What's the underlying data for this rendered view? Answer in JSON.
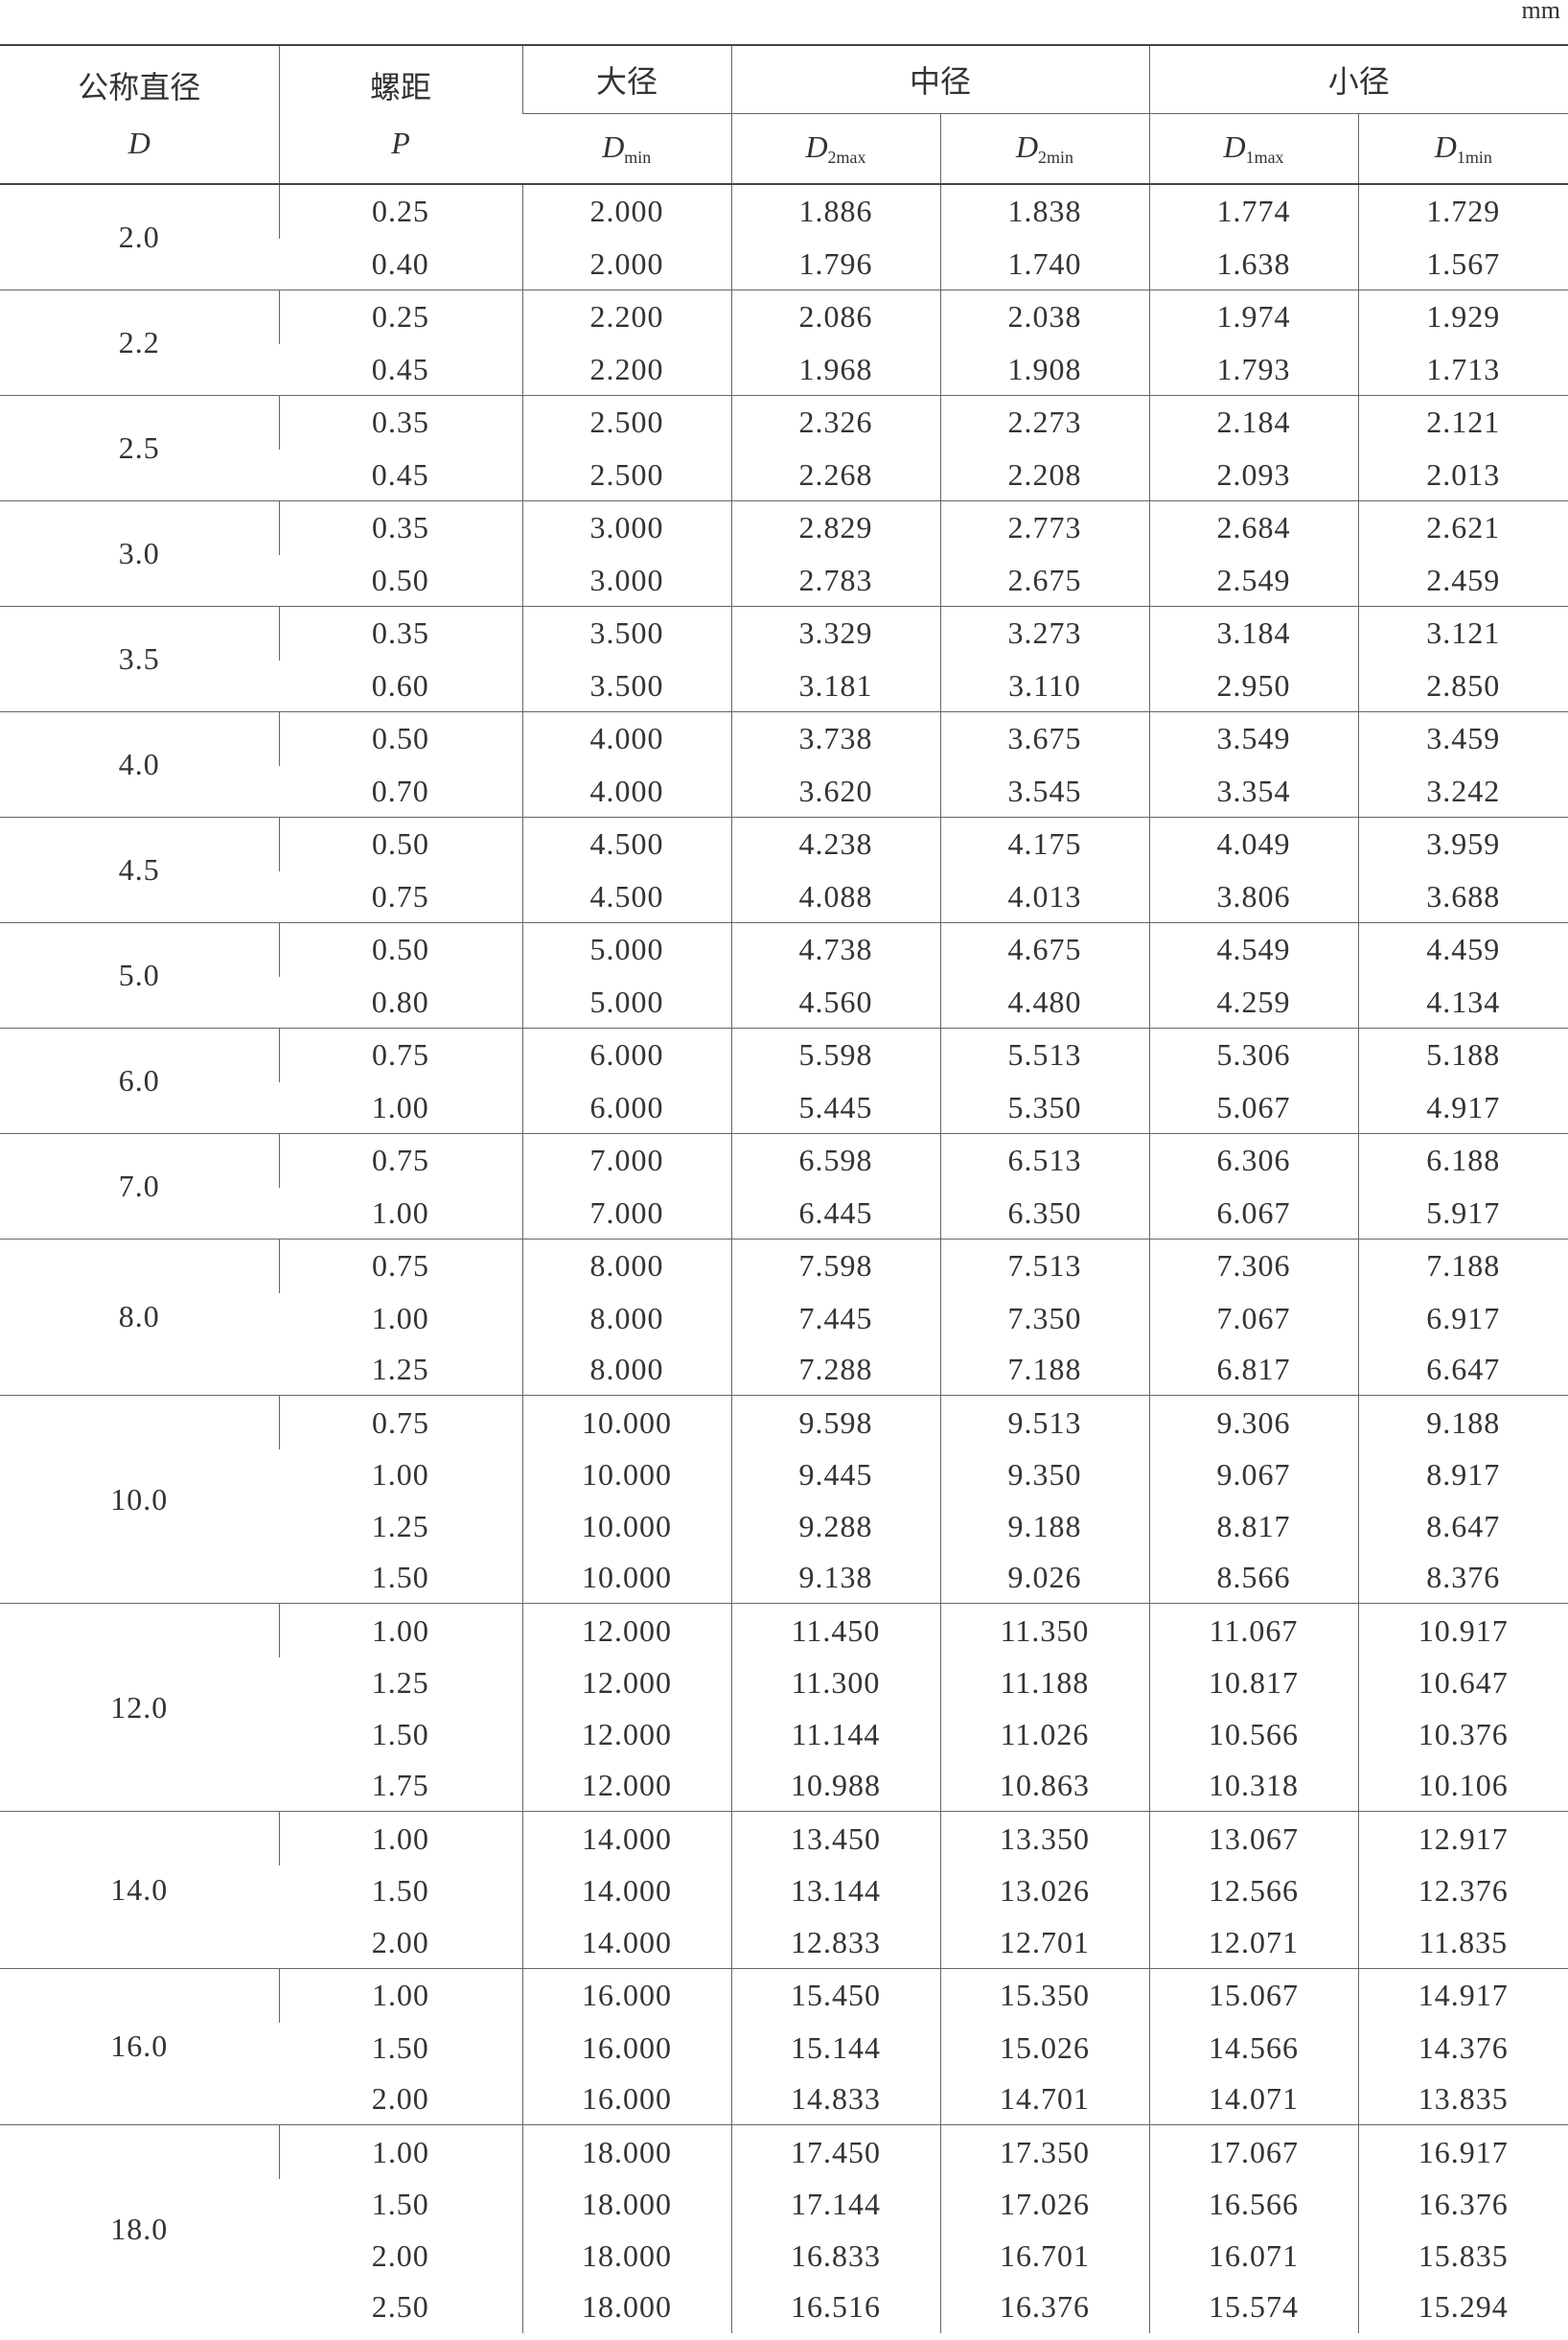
{
  "header": {
    "unit": "mm",
    "nominal_diameter": "公称直径",
    "nominal_symbol": "D",
    "pitch": "螺距",
    "pitch_symbol": "P",
    "major": "大径",
    "pitch_diameter": "中径",
    "minor": "小径",
    "sub_columns": [
      {
        "symbol": "D",
        "sub": "min"
      },
      {
        "symbol": "D",
        "sub": "2max"
      },
      {
        "symbol": "D",
        "sub": "2min"
      },
      {
        "symbol": "D",
        "sub": "1max"
      },
      {
        "symbol": "D",
        "sub": "1min"
      }
    ]
  },
  "table": {
    "groups": [
      {
        "D": "2.0",
        "rows": [
          [
            "0.25",
            "2.000",
            "1.886",
            "1.838",
            "1.774",
            "1.729"
          ],
          [
            "0.40",
            "2.000",
            "1.796",
            "1.740",
            "1.638",
            "1.567"
          ]
        ]
      },
      {
        "D": "2.2",
        "rows": [
          [
            "0.25",
            "2.200",
            "2.086",
            "2.038",
            "1.974",
            "1.929"
          ],
          [
            "0.45",
            "2.200",
            "1.968",
            "1.908",
            "1.793",
            "1.713"
          ]
        ]
      },
      {
        "D": "2.5",
        "rows": [
          [
            "0.35",
            "2.500",
            "2.326",
            "2.273",
            "2.184",
            "2.121"
          ],
          [
            "0.45",
            "2.500",
            "2.268",
            "2.208",
            "2.093",
            "2.013"
          ]
        ]
      },
      {
        "D": "3.0",
        "rows": [
          [
            "0.35",
            "3.000",
            "2.829",
            "2.773",
            "2.684",
            "2.621"
          ],
          [
            "0.50",
            "3.000",
            "2.783",
            "2.675",
            "2.549",
            "2.459"
          ]
        ]
      },
      {
        "D": "3.5",
        "rows": [
          [
            "0.35",
            "3.500",
            "3.329",
            "3.273",
            "3.184",
            "3.121"
          ],
          [
            "0.60",
            "3.500",
            "3.181",
            "3.110",
            "2.950",
            "2.850"
          ]
        ]
      },
      {
        "D": "4.0",
        "rows": [
          [
            "0.50",
            "4.000",
            "3.738",
            "3.675",
            "3.549",
            "3.459"
          ],
          [
            "0.70",
            "4.000",
            "3.620",
            "3.545",
            "3.354",
            "3.242"
          ]
        ]
      },
      {
        "D": "4.5",
        "rows": [
          [
            "0.50",
            "4.500",
            "4.238",
            "4.175",
            "4.049",
            "3.959"
          ],
          [
            "0.75",
            "4.500",
            "4.088",
            "4.013",
            "3.806",
            "3.688"
          ]
        ]
      },
      {
        "D": "5.0",
        "rows": [
          [
            "0.50",
            "5.000",
            "4.738",
            "4.675",
            "4.549",
            "4.459"
          ],
          [
            "0.80",
            "5.000",
            "4.560",
            "4.480",
            "4.259",
            "4.134"
          ]
        ]
      },
      {
        "D": "6.0",
        "rows": [
          [
            "0.75",
            "6.000",
            "5.598",
            "5.513",
            "5.306",
            "5.188"
          ],
          [
            "1.00",
            "6.000",
            "5.445",
            "5.350",
            "5.067",
            "4.917"
          ]
        ]
      },
      {
        "D": "7.0",
        "rows": [
          [
            "0.75",
            "7.000",
            "6.598",
            "6.513",
            "6.306",
            "6.188"
          ],
          [
            "1.00",
            "7.000",
            "6.445",
            "6.350",
            "6.067",
            "5.917"
          ]
        ]
      },
      {
        "D": "8.0",
        "rows": [
          [
            "0.75",
            "8.000",
            "7.598",
            "7.513",
            "7.306",
            "7.188"
          ],
          [
            "1.00",
            "8.000",
            "7.445",
            "7.350",
            "7.067",
            "6.917"
          ],
          [
            "1.25",
            "8.000",
            "7.288",
            "7.188",
            "6.817",
            "6.647"
          ]
        ]
      },
      {
        "D": "10.0",
        "rows": [
          [
            "0.75",
            "10.000",
            "9.598",
            "9.513",
            "9.306",
            "9.188"
          ],
          [
            "1.00",
            "10.000",
            "9.445",
            "9.350",
            "9.067",
            "8.917"
          ],
          [
            "1.25",
            "10.000",
            "9.288",
            "9.188",
            "8.817",
            "8.647"
          ],
          [
            "1.50",
            "10.000",
            "9.138",
            "9.026",
            "8.566",
            "8.376"
          ]
        ]
      },
      {
        "D": "12.0",
        "rows": [
          [
            "1.00",
            "12.000",
            "11.450",
            "11.350",
            "11.067",
            "10.917"
          ],
          [
            "1.25",
            "12.000",
            "11.300",
            "11.188",
            "10.817",
            "10.647"
          ],
          [
            "1.50",
            "12.000",
            "11.144",
            "11.026",
            "10.566",
            "10.376"
          ],
          [
            "1.75",
            "12.000",
            "10.988",
            "10.863",
            "10.318",
            "10.106"
          ]
        ]
      },
      {
        "D": "14.0",
        "rows": [
          [
            "1.00",
            "14.000",
            "13.450",
            "13.350",
            "13.067",
            "12.917"
          ],
          [
            "1.50",
            "14.000",
            "13.144",
            "13.026",
            "12.566",
            "12.376"
          ],
          [
            "2.00",
            "14.000",
            "12.833",
            "12.701",
            "12.071",
            "11.835"
          ]
        ]
      },
      {
        "D": "16.0",
        "rows": [
          [
            "1.00",
            "16.000",
            "15.450",
            "15.350",
            "15.067",
            "14.917"
          ],
          [
            "1.50",
            "16.000",
            "15.144",
            "15.026",
            "14.566",
            "14.376"
          ],
          [
            "2.00",
            "16.000",
            "14.833",
            "14.701",
            "14.071",
            "13.835"
          ]
        ]
      },
      {
        "D": "18.0",
        "rows": [
          [
            "1.00",
            "18.000",
            "17.450",
            "17.350",
            "17.067",
            "16.917"
          ],
          [
            "1.50",
            "18.000",
            "17.144",
            "17.026",
            "16.566",
            "16.376"
          ],
          [
            "2.00",
            "18.000",
            "16.833",
            "16.701",
            "16.071",
            "15.835"
          ],
          [
            "2.50",
            "18.000",
            "16.516",
            "16.376",
            "15.574",
            "15.294"
          ]
        ]
      }
    ]
  }
}
